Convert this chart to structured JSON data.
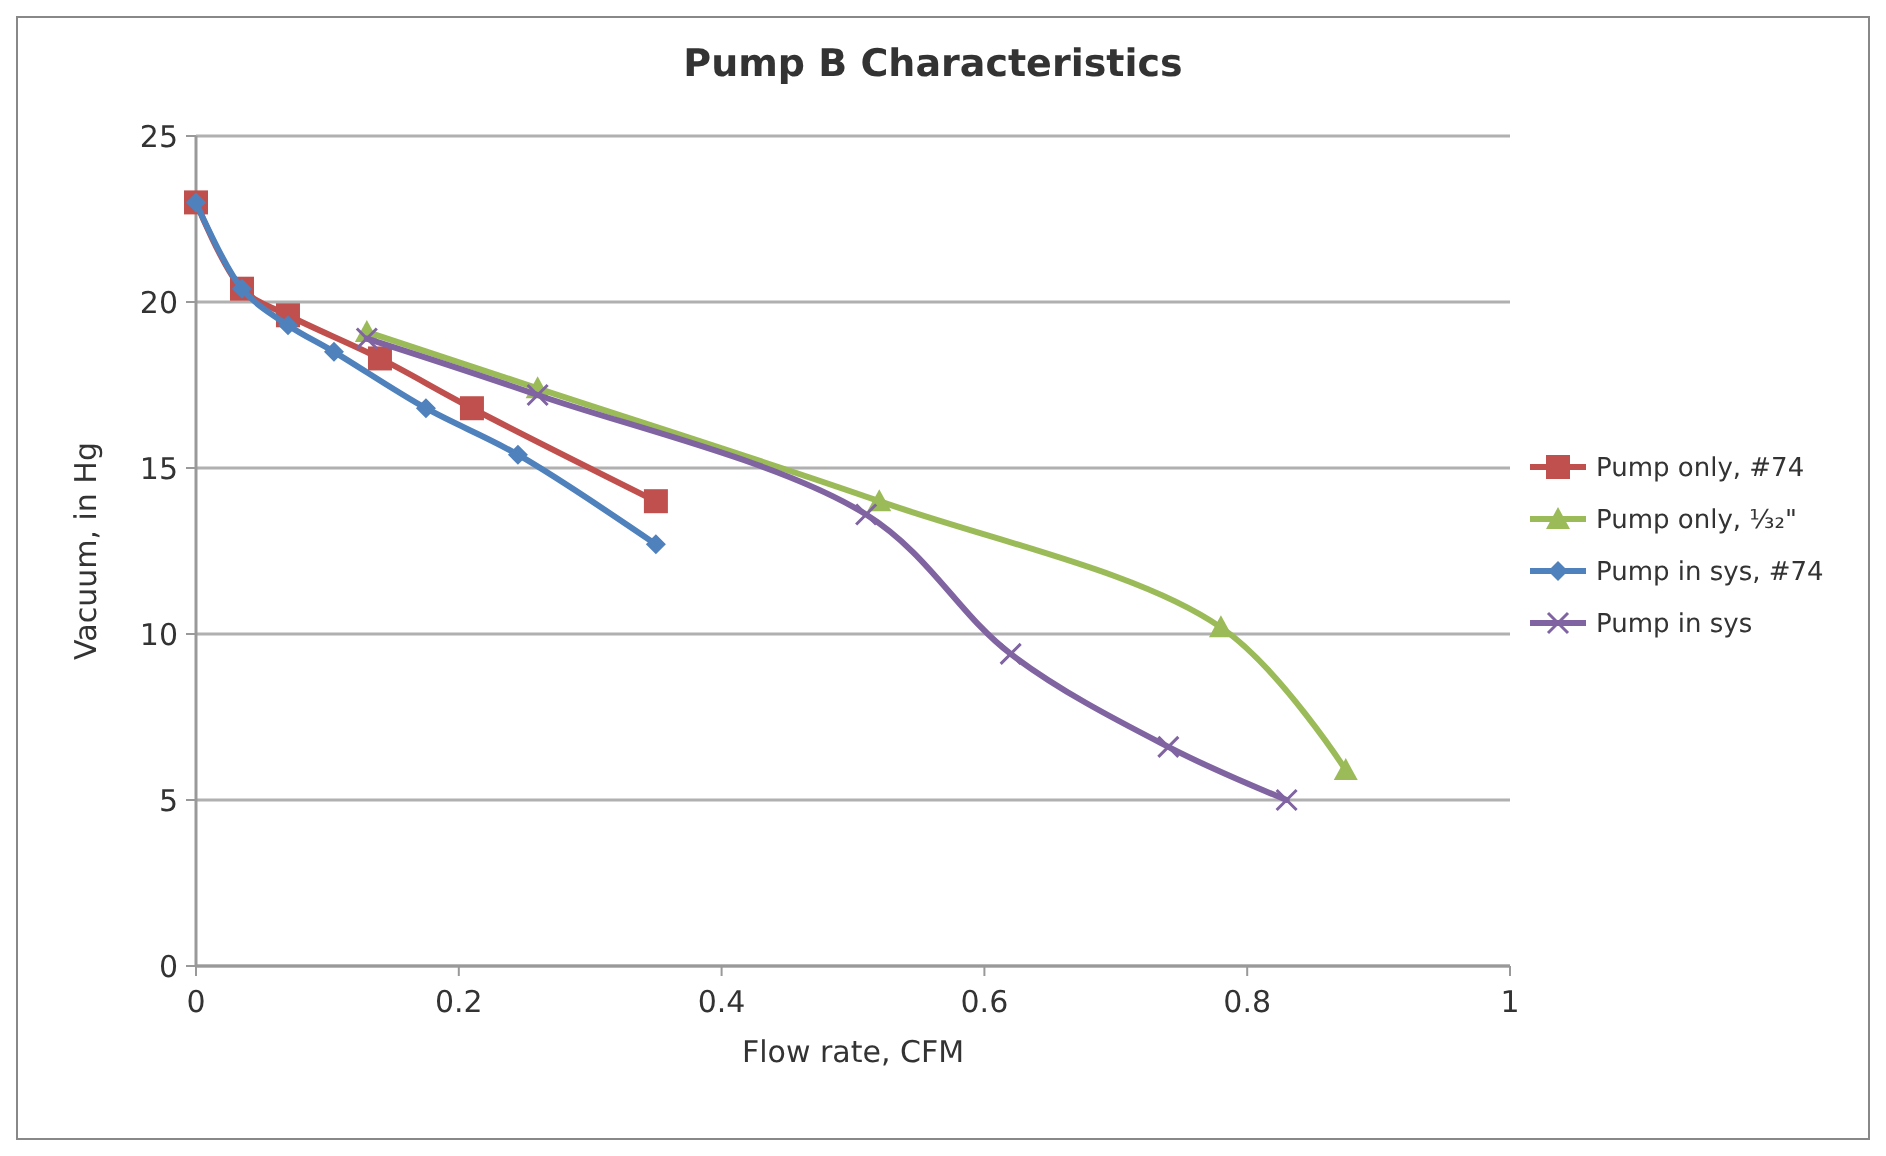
{
  "chart_data": {
    "type": "line",
    "title": "Pump B Characteristics",
    "xlabel": "Flow rate, CFM",
    "ylabel": "Vacuum, in Hg",
    "xlim": [
      0,
      1
    ],
    "xticks": [
      0,
      0.2,
      0.4,
      0.6,
      0.8,
      1
    ],
    "ylim": [
      0,
      25
    ],
    "yticks": [
      0,
      5,
      10,
      15,
      20,
      25
    ],
    "grid": "y",
    "legend": "right",
    "series": [
      {
        "name": "Pump only, #74",
        "color": "#c0504d",
        "marker": "square",
        "x": [
          0,
          0.035,
          0.07,
          0.14,
          0.21,
          0.35
        ],
        "values": [
          23,
          20.4,
          19.6,
          18.3,
          16.8,
          14.0
        ]
      },
      {
        "name": "Pump only, ¹⁄₃₂\"",
        "color": "#9bbb59",
        "marker": "triangle",
        "x": [
          0.13,
          0.26,
          0.52,
          0.78,
          0.875
        ],
        "values": [
          19.1,
          17.4,
          14.0,
          10.2,
          5.9
        ]
      },
      {
        "name": "Pump in sys, #74",
        "color": "#4f81bd",
        "marker": "diamond",
        "x": [
          0,
          0.035,
          0.07,
          0.105,
          0.175,
          0.245,
          0.35
        ],
        "values": [
          23,
          20.4,
          19.3,
          18.5,
          16.8,
          15.4,
          12.7
        ]
      },
      {
        "name": "Pump in sys",
        "color": "#8064a2",
        "marker": "cross",
        "x": [
          0.13,
          0.26,
          0.51,
          0.62,
          0.74,
          0.83
        ],
        "values": [
          18.9,
          17.2,
          13.6,
          9.4,
          6.6,
          5.0
        ]
      }
    ]
  }
}
